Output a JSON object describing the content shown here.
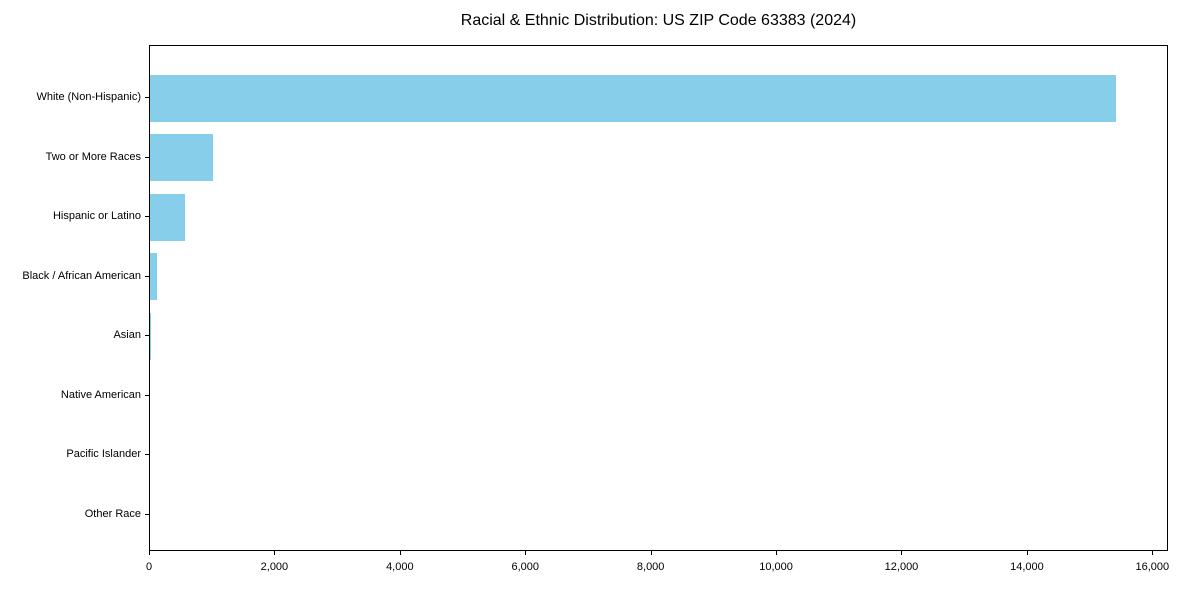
{
  "title": "Racial & Ethnic Distribution: US ZIP Code 63383 (2024)",
  "colors": {
    "bar": "#87CEEB",
    "axis": "#000000",
    "background": "#FFFFFF",
    "text": "#000000"
  },
  "chart_data": {
    "type": "bar",
    "orientation": "horizontal",
    "title": "Racial & Ethnic Distribution: US ZIP Code 63383 (2024)",
    "xlabel": "",
    "ylabel": "",
    "categories": [
      "White (Non-Hispanic)",
      "Two or More Races",
      "Hispanic or Latino",
      "Black / African American",
      "Asian",
      "Native American",
      "Pacific Islander",
      "Other Race"
    ],
    "values": [
      15400,
      1000,
      560,
      110,
      15,
      0,
      0,
      0
    ],
    "xlim": [
      0,
      16250
    ],
    "xticks": [
      0,
      2000,
      4000,
      6000,
      8000,
      10000,
      12000,
      14000,
      16000
    ],
    "xtick_labels": [
      "0",
      "2,000",
      "4,000",
      "6,000",
      "8,000",
      "10,000",
      "12,000",
      "14,000",
      "16,000"
    ],
    "grid": "off",
    "legend": "none",
    "bar_color": "#87CEEB"
  }
}
